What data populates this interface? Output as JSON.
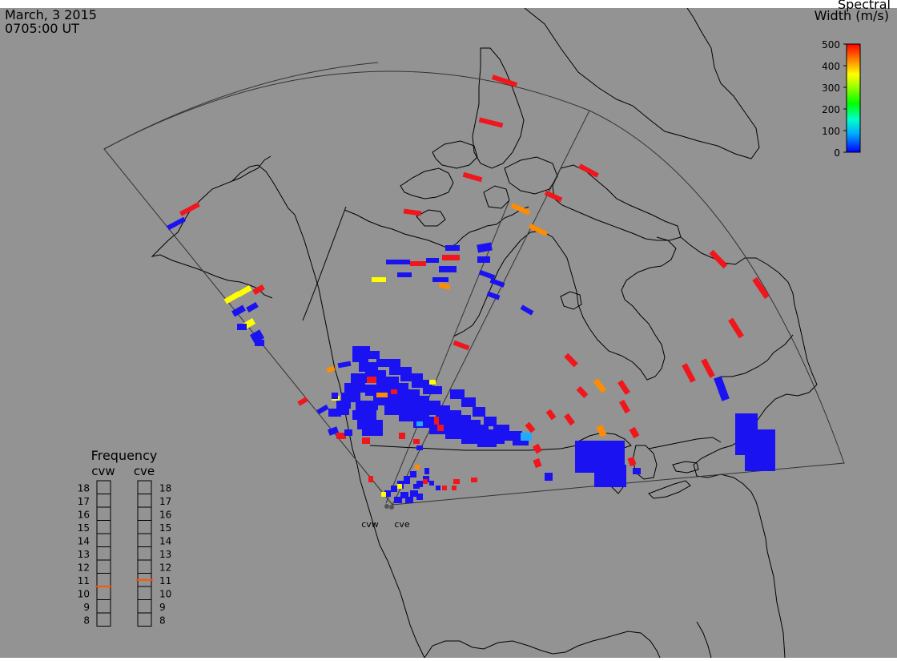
{
  "header": {
    "date": "March, 3 2015",
    "time": "0705:00 UT"
  },
  "colorbar": {
    "title_line1": "Spectral",
    "title_line2": "Width (m/s)",
    "ticks": [
      "500",
      "400",
      "300",
      "200",
      "100",
      "0"
    ],
    "range": [
      0,
      500
    ]
  },
  "frequency_panel": {
    "title": "Frequency",
    "radars": [
      {
        "name": "cvw",
        "marker_value": 10.5
      },
      {
        "name": "cve",
        "marker_value": 11
      }
    ],
    "scale_labels": [
      "18",
      "17",
      "16",
      "15",
      "14",
      "13",
      "12",
      "11",
      "10",
      "9",
      "8"
    ]
  },
  "sites": [
    {
      "label": "cvw"
    },
    {
      "label": "cve"
    }
  ],
  "colors": {
    "background": "#939393",
    "low_width": "#1a12f0",
    "high_width": "#f0161b",
    "orange": "#ff8c00",
    "yellow": "#ffff00",
    "marker": "#ff5500"
  }
}
